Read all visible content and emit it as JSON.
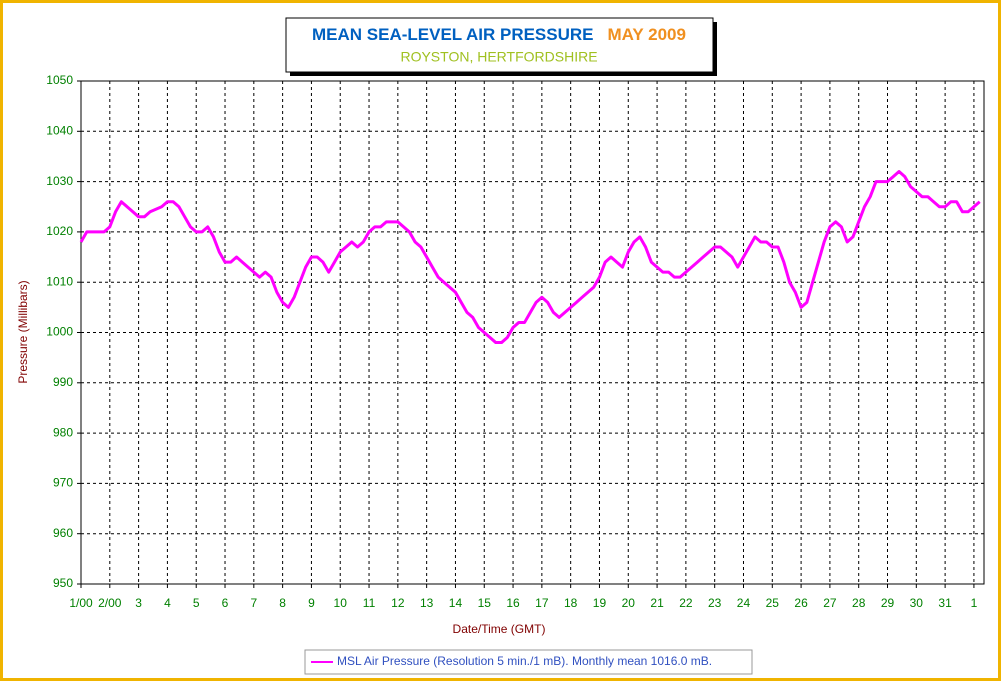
{
  "chart_data": {
    "type": "line",
    "title": "MEAN SEA-LEVEL AIR PRESSURE",
    "title_period": "MAY 2009",
    "subtitle": "ROYSTON, HERTFORDSHIRE",
    "xlabel": "Date/Time (GMT)",
    "ylabel": "Pressure (Millibars)",
    "xlim": [
      1,
      32.35
    ],
    "ylim": [
      950,
      1050
    ],
    "yticks": [
      950,
      960,
      970,
      980,
      990,
      1000,
      1010,
      1020,
      1030,
      1040,
      1050
    ],
    "xticks": [
      {
        "value": 1,
        "label": "1/00"
      },
      {
        "value": 2,
        "label": "2/00"
      },
      3,
      4,
      5,
      6,
      7,
      8,
      9,
      10,
      11,
      12,
      13,
      14,
      15,
      16,
      17,
      18,
      19,
      20,
      21,
      22,
      23,
      24,
      25,
      26,
      27,
      28,
      29,
      30,
      31,
      {
        "value": 32,
        "label": "1"
      }
    ],
    "grid": true,
    "legend": "bottom",
    "x": [
      1,
      1.2,
      1.4,
      1.6,
      1.8,
      2,
      2.2,
      2.4,
      2.6,
      2.8,
      3,
      3.2,
      3.4,
      3.6,
      3.8,
      4,
      4.2,
      4.4,
      4.6,
      4.8,
      5,
      5.2,
      5.4,
      5.6,
      5.8,
      6,
      6.2,
      6.4,
      6.6,
      6.8,
      7,
      7.2,
      7.4,
      7.6,
      7.8,
      8,
      8.2,
      8.4,
      8.6,
      8.8,
      9,
      9.2,
      9.4,
      9.6,
      9.8,
      10,
      10.2,
      10.4,
      10.6,
      10.8,
      11,
      11.2,
      11.4,
      11.6,
      11.8,
      12,
      12.2,
      12.4,
      12.6,
      12.8,
      13,
      13.2,
      13.4,
      13.6,
      13.8,
      14,
      14.2,
      14.4,
      14.6,
      14.8,
      15,
      15.2,
      15.4,
      15.6,
      15.8,
      16,
      16.2,
      16.4,
      16.6,
      16.8,
      17,
      17.2,
      17.4,
      17.6,
      17.8,
      18,
      18.2,
      18.4,
      18.6,
      18.8,
      19,
      19.2,
      19.4,
      19.6,
      19.8,
      20,
      20.2,
      20.4,
      20.6,
      20.8,
      21,
      21.2,
      21.4,
      21.6,
      21.8,
      22,
      22.2,
      22.4,
      22.6,
      22.8,
      23,
      23.2,
      23.4,
      23.6,
      23.8,
      24,
      24.2,
      24.4,
      24.6,
      24.8,
      25,
      25.2,
      25.4,
      25.6,
      25.8,
      26,
      26.2,
      26.4,
      26.6,
      26.8,
      27,
      27.2,
      27.4,
      27.6,
      27.8,
      28,
      28.2,
      28.4,
      28.6,
      28.8,
      29,
      29.2,
      29.4,
      29.6,
      29.8,
      30,
      30.2,
      30.4,
      30.6,
      30.8,
      31,
      31.2,
      31.4,
      31.6,
      31.8,
      32,
      32.2
    ],
    "series": [
      {
        "name": "MSL Air Pressure (Resolution 5 min./1 mB). Monthly mean 1016.0 mB.",
        "color": "#ff00ff",
        "values": [
          1018,
          1020,
          1020,
          1020,
          1020,
          1021,
          1024,
          1026,
          1025,
          1024,
          1023,
          1023,
          1024,
          1024.5,
          1025,
          1026,
          1026,
          1025,
          1023,
          1021,
          1020,
          1020,
          1021,
          1019,
          1016,
          1014,
          1014,
          1015,
          1014,
          1013,
          1012,
          1011,
          1012,
          1011,
          1008,
          1006,
          1005,
          1007,
          1010,
          1013,
          1015,
          1015,
          1014,
          1012,
          1014,
          1016,
          1017,
          1018,
          1017,
          1018,
          1020,
          1021,
          1021,
          1022,
          1022,
          1022,
          1021,
          1020,
          1018,
          1017,
          1015,
          1013,
          1011,
          1010,
          1009,
          1008,
          1006,
          1004,
          1003,
          1001,
          1000,
          999,
          998,
          998,
          999,
          1001,
          1002,
          1002,
          1004,
          1006,
          1007,
          1006,
          1004,
          1003,
          1004,
          1005,
          1006,
          1007,
          1008,
          1009,
          1011,
          1014,
          1015,
          1014,
          1013,
          1016,
          1018,
          1019,
          1017,
          1014,
          1013,
          1012,
          1012,
          1011,
          1011,
          1012,
          1013,
          1014,
          1015,
          1016,
          1017,
          1017,
          1016,
          1015,
          1013,
          1015,
          1017,
          1019,
          1018,
          1018,
          1017,
          1017,
          1014,
          1010,
          1008,
          1005,
          1006,
          1010,
          1014,
          1018,
          1021,
          1022,
          1021,
          1018,
          1019,
          1022,
          1025,
          1027,
          1030,
          1030,
          1030,
          1031,
          1032,
          1031,
          1029,
          1028,
          1027,
          1027,
          1026,
          1025,
          1025,
          1026,
          1026,
          1024,
          1024,
          1025,
          1026
        ]
      }
    ]
  }
}
